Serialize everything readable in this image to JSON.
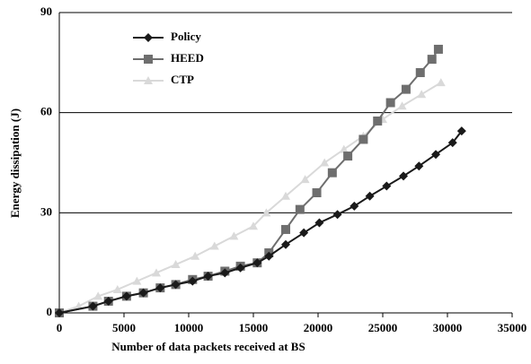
{
  "chart_data": {
    "type": "line",
    "x_label": "Number of data packets received at BS",
    "y_label": "Energy dissipation (J)",
    "xlim": [
      0,
      35000
    ],
    "xticks": [
      0,
      5000,
      10000,
      15000,
      20000,
      25000,
      30000,
      35000
    ],
    "ylim": [
      0,
      90
    ],
    "yticks": [
      0,
      30,
      60,
      90
    ],
    "grid": true,
    "series": [
      {
        "name": "Policy",
        "color": "#1a1a1a",
        "marker": "diamond",
        "x": [
          0,
          2600,
          3800,
          5200,
          6500,
          7800,
          9000,
          10300,
          11500,
          12800,
          14000,
          15300,
          16200,
          17500,
          18900,
          20100,
          21500,
          22800,
          24000,
          25300,
          26600,
          27800,
          29100,
          30400,
          31100
        ],
        "values": [
          0,
          2,
          3.5,
          5,
          6,
          7.5,
          8.5,
          9.5,
          11,
          12,
          13.5,
          15,
          17,
          20.5,
          24,
          27,
          29.5,
          32,
          35,
          38,
          41,
          44,
          47.5,
          51,
          54.5
        ]
      },
      {
        "name": "HEED",
        "color": "#6e6e6e",
        "marker": "square",
        "x": [
          0,
          2600,
          3800,
          5200,
          6500,
          7800,
          9000,
          10300,
          11500,
          12800,
          14000,
          15300,
          16200,
          17500,
          18600,
          19900,
          21100,
          22300,
          23500,
          24600,
          25600,
          26800,
          27900,
          28800,
          29300
        ],
        "values": [
          0,
          2,
          3.5,
          5,
          6,
          7.5,
          8.5,
          10,
          11,
          12.5,
          14,
          15,
          18,
          25,
          31,
          36,
          42,
          47,
          52,
          57.5,
          63,
          67,
          72,
          76,
          79
        ]
      },
      {
        "name": "CTP",
        "color": "#d9d9d9",
        "marker": "triangle",
        "x": [
          0,
          1500,
          3000,
          4500,
          6000,
          7500,
          9000,
          10500,
          12000,
          13500,
          15000,
          16000,
          17500,
          19000,
          20500,
          22000,
          23500,
          25000,
          26500,
          28000,
          29500
        ],
        "values": [
          0,
          2,
          5,
          7,
          9.5,
          12,
          14.5,
          17,
          20,
          23,
          26,
          30,
          35,
          40,
          45,
          49,
          53,
          58,
          62,
          65.5,
          69
        ]
      }
    ]
  }
}
